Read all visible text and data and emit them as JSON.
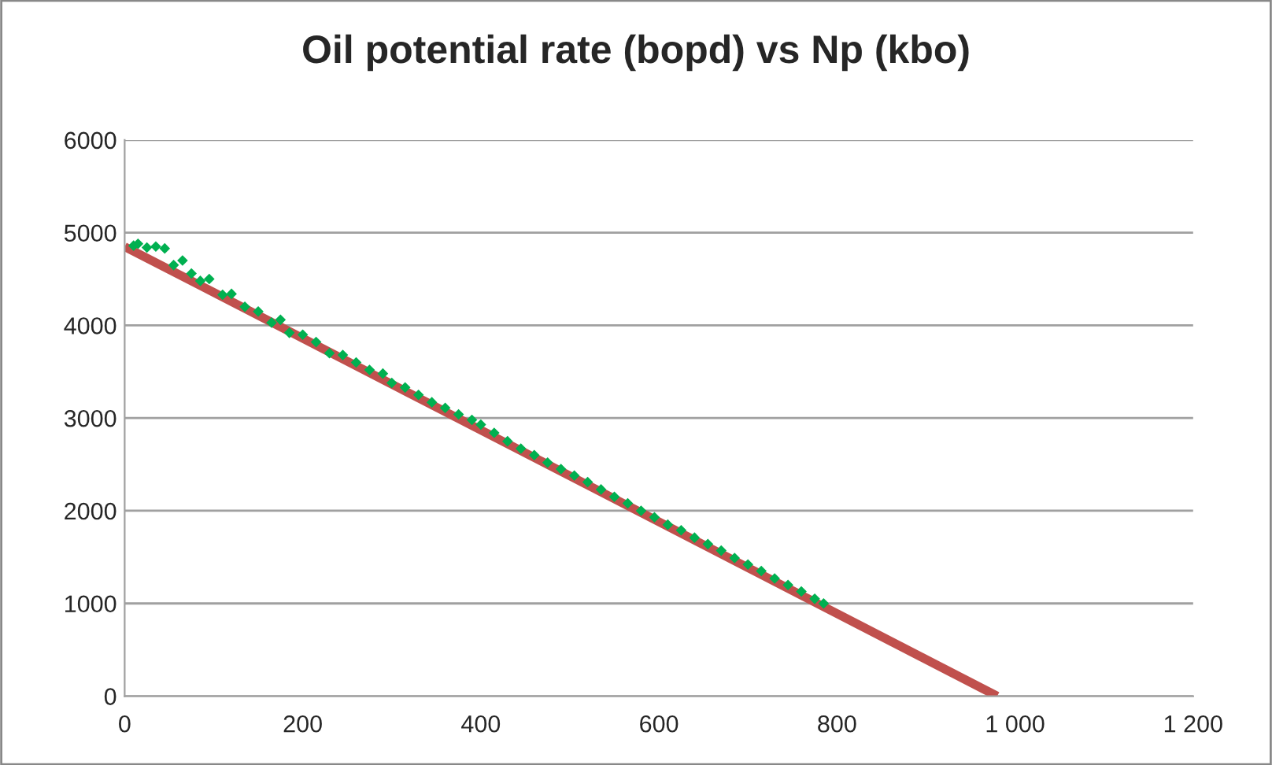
{
  "chart_data": {
    "type": "scatter",
    "title": "Oil potential rate (bopd) vs Np (kbo)",
    "series": [
      {
        "color": "#00b050",
        "marker": "diamond",
        "x": [
          10,
          15,
          25,
          35,
          45,
          55,
          65,
          75,
          85,
          95,
          110,
          120,
          135,
          150,
          165,
          175,
          185,
          200,
          215,
          230,
          245,
          260,
          275,
          290,
          300,
          315,
          330,
          345,
          360,
          375,
          390,
          400,
          415,
          430,
          445,
          460,
          475,
          490,
          505,
          520,
          535,
          550,
          565,
          580,
          595,
          610,
          625,
          640,
          655,
          670,
          685,
          700,
          715,
          730,
          745,
          760,
          775,
          785
        ],
        "values": [
          4860,
          4880,
          4840,
          4850,
          4830,
          4650,
          4700,
          4560,
          4480,
          4500,
          4330,
          4340,
          4200,
          4150,
          4030,
          4060,
          3920,
          3900,
          3820,
          3700,
          3680,
          3600,
          3520,
          3480,
          3380,
          3330,
          3250,
          3170,
          3110,
          3040,
          2980,
          2930,
          2840,
          2750,
          2670,
          2600,
          2520,
          2450,
          2380,
          2310,
          2230,
          2150,
          2080,
          2000,
          1930,
          1850,
          1790,
          1710,
          1640,
          1570,
          1490,
          1420,
          1350,
          1270,
          1200,
          1130,
          1050,
          1000
        ]
      },
      {
        "type": "line",
        "color": "#c0504d",
        "line_style": "solid",
        "x": [
          0,
          980
        ],
        "values": [
          4850,
          0
        ]
      }
    ],
    "xlim": [
      0,
      1200
    ],
    "xticks": [
      0,
      200,
      400,
      600,
      800,
      {
        "value": 1000,
        "label": "1 000"
      },
      {
        "value": 1200,
        "label": "1 200"
      }
    ],
    "ylim": [
      0,
      6000
    ],
    "yticks": [
      0,
      1000,
      2000,
      3000,
      4000,
      5000,
      6000
    ],
    "grid": "y",
    "legend": false
  }
}
